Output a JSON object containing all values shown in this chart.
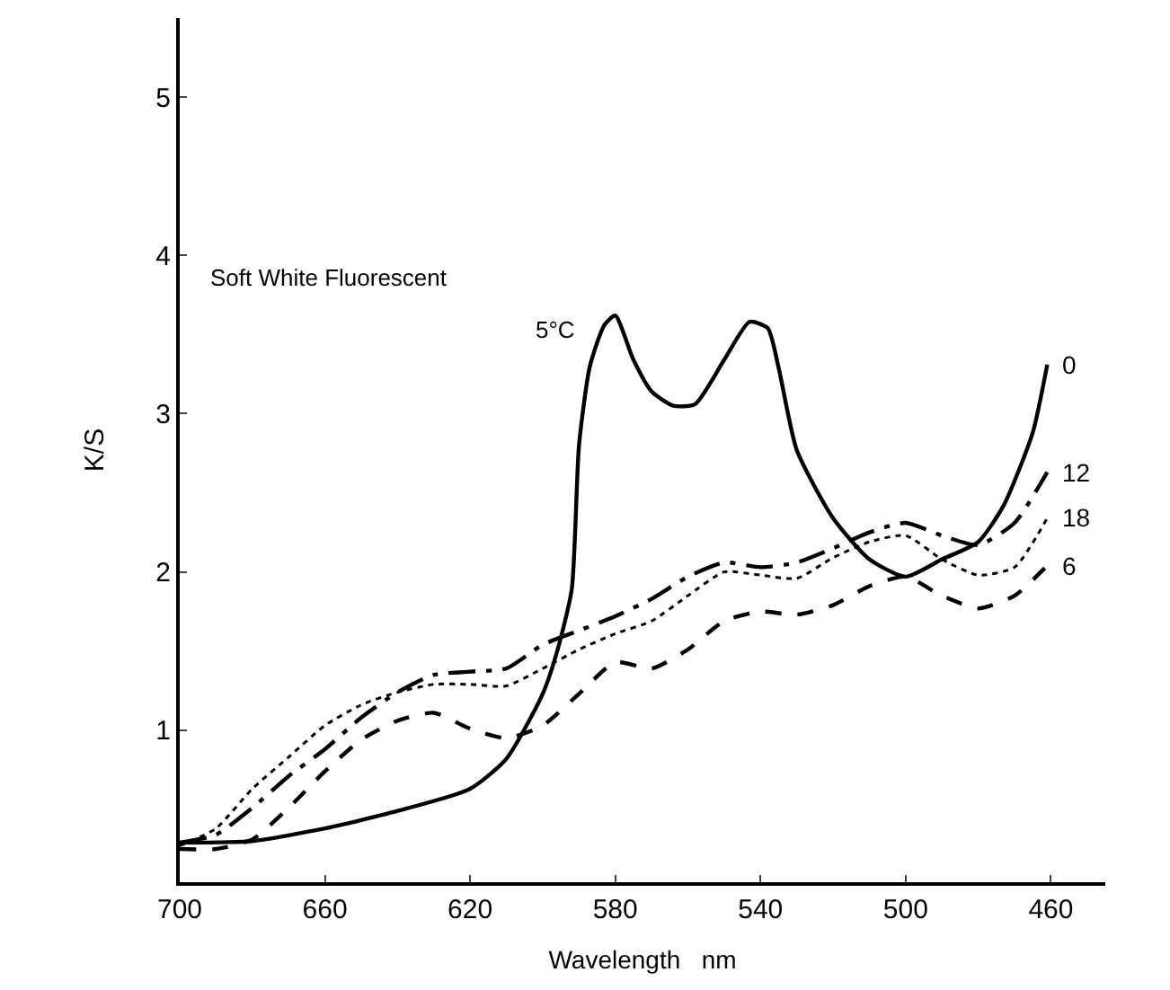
{
  "chart_data": {
    "type": "line",
    "xlabel": "Wavelength   nm",
    "ylabel": "K/S",
    "xlim": [
      700,
      445
    ],
    "ylim": [
      0.04,
      5.5
    ],
    "xticks": [
      700,
      660,
      620,
      580,
      540,
      500,
      460
    ],
    "yticks": [
      1,
      2,
      3,
      4,
      5
    ],
    "legend": false,
    "marker": "none",
    "annotations": [
      "Soft White Fluorescent",
      "5°C"
    ],
    "series": [
      {
        "name": "0",
        "color": "#000000",
        "line_style": "solid",
        "x": [
          700,
          680,
          660,
          640,
          620,
          610,
          600,
          596,
          592,
          590,
          587,
          583,
          580,
          575,
          570,
          564,
          558,
          550,
          543,
          538,
          535,
          530,
          520,
          510,
          500,
          490,
          480,
          473,
          465,
          461
        ],
        "values": [
          0.29,
          0.3,
          0.38,
          0.49,
          0.63,
          0.82,
          1.23,
          1.5,
          1.89,
          2.8,
          3.3,
          3.56,
          3.62,
          3.34,
          3.14,
          3.05,
          3.06,
          3.34,
          3.58,
          3.54,
          3.29,
          2.77,
          2.34,
          2.08,
          1.97,
          2.08,
          2.19,
          2.42,
          2.88,
          3.31
        ]
      },
      {
        "name": "12",
        "color": "#000000",
        "line_style": "dashdot",
        "x": [
          700,
          690,
          680,
          670,
          660,
          650,
          640,
          630,
          620,
          610,
          600,
          590,
          580,
          570,
          560,
          550,
          540,
          530,
          520,
          510,
          500,
          490,
          480,
          470,
          461
        ],
        "values": [
          0.29,
          0.34,
          0.51,
          0.71,
          0.88,
          1.08,
          1.24,
          1.35,
          1.37,
          1.39,
          1.54,
          1.63,
          1.72,
          1.83,
          1.97,
          2.06,
          2.03,
          2.06,
          2.15,
          2.25,
          2.31,
          2.23,
          2.17,
          2.31,
          2.63
        ]
      },
      {
        "name": "18",
        "color": "#000000",
        "line_style": "dotted",
        "x": [
          700,
          690,
          680,
          670,
          660,
          650,
          640,
          630,
          620,
          610,
          600,
          590,
          580,
          570,
          560,
          550,
          540,
          530,
          520,
          510,
          500,
          490,
          480,
          470,
          461
        ],
        "values": [
          0.27,
          0.38,
          0.63,
          0.83,
          1.03,
          1.16,
          1.24,
          1.29,
          1.29,
          1.28,
          1.39,
          1.51,
          1.61,
          1.69,
          1.85,
          2.0,
          1.98,
          1.96,
          2.09,
          2.19,
          2.23,
          2.08,
          1.98,
          2.03,
          2.34
        ]
      },
      {
        "name": "6",
        "color": "#000000",
        "line_style": "dashed",
        "x": [
          700,
          690,
          680,
          670,
          660,
          650,
          640,
          630,
          620,
          610,
          600,
          590,
          580,
          570,
          560,
          550,
          540,
          530,
          520,
          510,
          500,
          490,
          480,
          470,
          461
        ],
        "values": [
          0.25,
          0.25,
          0.31,
          0.51,
          0.74,
          0.94,
          1.06,
          1.11,
          1.01,
          0.95,
          1.03,
          1.23,
          1.43,
          1.39,
          1.51,
          1.69,
          1.75,
          1.73,
          1.79,
          1.91,
          1.97,
          1.85,
          1.77,
          1.85,
          2.04
        ]
      }
    ]
  }
}
